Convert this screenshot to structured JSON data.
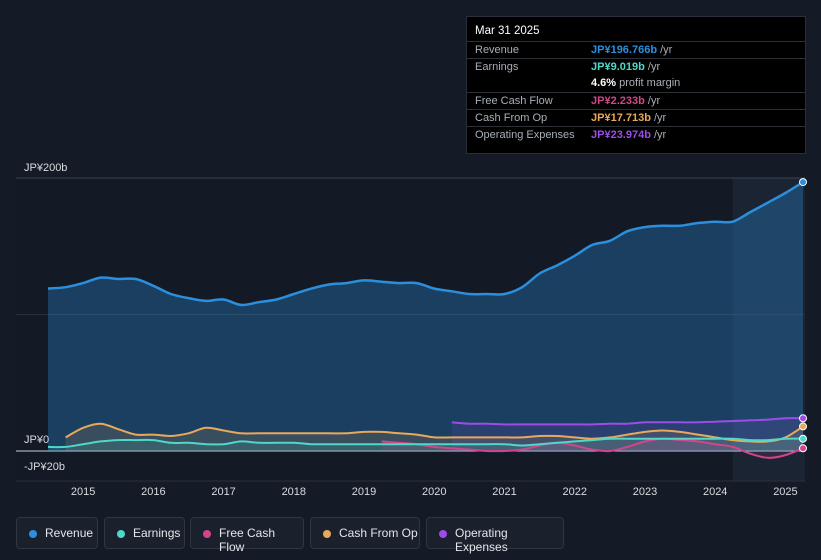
{
  "chart_data": {
    "type": "area",
    "y_axis_labels": {
      "top": "JP¥200b",
      "zero": "JP¥0",
      "bottom": "-JP¥20b"
    },
    "ylim": [
      -20,
      200
    ],
    "x_ticks": [
      2015,
      2016,
      2017,
      2018,
      2019,
      2020,
      2021,
      2022,
      2023,
      2024,
      2025
    ],
    "x_range": [
      2014.5,
      2025.25
    ],
    "highlight_start": 2024.25,
    "colors": {
      "revenue": "#2b8fdd",
      "earnings": "#4fd8c8",
      "fcf": "#d1468b",
      "cfo": "#e8a95a",
      "opex": "#9c4ce8"
    },
    "series": [
      {
        "name": "Revenue",
        "key": "revenue",
        "x": [
          2014.5,
          2014.75,
          2015.0,
          2015.25,
          2015.5,
          2015.75,
          2016.0,
          2016.25,
          2016.5,
          2016.75,
          2017.0,
          2017.25,
          2017.5,
          2017.75,
          2018.0,
          2018.25,
          2018.5,
          2018.75,
          2019.0,
          2019.25,
          2019.5,
          2019.75,
          2020.0,
          2020.25,
          2020.5,
          2020.75,
          2021.0,
          2021.25,
          2021.5,
          2021.75,
          2022.0,
          2022.25,
          2022.5,
          2022.75,
          2023.0,
          2023.25,
          2023.5,
          2023.75,
          2024.0,
          2024.25,
          2024.5,
          2024.75,
          2025.0,
          2025.25
        ],
        "values": [
          119,
          120,
          123,
          127,
          126,
          126,
          121,
          115,
          112,
          110,
          111,
          107,
          109,
          111,
          115,
          119,
          122,
          123,
          125,
          124,
          123,
          123,
          119,
          117,
          115,
          115,
          115,
          120,
          130,
          136,
          143,
          151,
          154,
          161,
          164,
          165,
          165,
          167,
          168,
          168,
          175,
          182,
          189,
          197
        ]
      },
      {
        "name": "Earnings",
        "key": "earnings",
        "x": [
          2014.5,
          2014.75,
          2015.0,
          2015.25,
          2015.5,
          2015.75,
          2016.0,
          2016.25,
          2016.5,
          2016.75,
          2017.0,
          2017.25,
          2017.5,
          2017.75,
          2018.0,
          2018.25,
          2018.5,
          2018.75,
          2019.0,
          2019.25,
          2019.5,
          2019.75,
          2020.0,
          2020.25,
          2020.5,
          2020.75,
          2021.0,
          2021.25,
          2021.5,
          2021.75,
          2022.0,
          2022.25,
          2022.5,
          2022.75,
          2023.0,
          2023.25,
          2023.5,
          2023.75,
          2024.0,
          2024.25,
          2024.5,
          2024.75,
          2025.0,
          2025.25
        ],
        "values": [
          3,
          3,
          5,
          7,
          8,
          8,
          8,
          6,
          6,
          5,
          5,
          7,
          6,
          6,
          6,
          5,
          5,
          5,
          5,
          5,
          5,
          5,
          5,
          5,
          5,
          5,
          5,
          4,
          5,
          6,
          7,
          8,
          9,
          9,
          9,
          9,
          9,
          9,
          9,
          9,
          8,
          8,
          9,
          9
        ]
      },
      {
        "name": "Free Cash Flow",
        "key": "fcf",
        "x": [
          2019.25,
          2019.5,
          2019.75,
          2020.0,
          2020.25,
          2020.5,
          2020.75,
          2021.0,
          2021.25,
          2021.5,
          2021.75,
          2022.0,
          2022.25,
          2022.5,
          2022.75,
          2023.0,
          2023.25,
          2023.5,
          2023.75,
          2024.0,
          2024.25,
          2024.5,
          2024.75,
          2025.0,
          2025.25
        ],
        "values": [
          7,
          6,
          5,
          3,
          2,
          1,
          0,
          0,
          1,
          4,
          6,
          4,
          1,
          0,
          3,
          7,
          9,
          8,
          7,
          5,
          3,
          -2,
          -5,
          -3,
          2
        ]
      },
      {
        "name": "Cash From Op",
        "key": "cfo",
        "x": [
          2014.75,
          2015.0,
          2015.25,
          2015.5,
          2015.75,
          2016.0,
          2016.25,
          2016.5,
          2016.75,
          2017.0,
          2017.25,
          2017.5,
          2017.75,
          2018.0,
          2018.25,
          2018.5,
          2018.75,
          2019.0,
          2019.25,
          2019.5,
          2019.75,
          2020.0,
          2020.25,
          2020.5,
          2020.75,
          2021.0,
          2021.25,
          2021.5,
          2021.75,
          2022.0,
          2022.25,
          2022.5,
          2022.75,
          2023.0,
          2023.25,
          2023.5,
          2023.75,
          2024.0,
          2024.25,
          2024.5,
          2024.75,
          2025.0,
          2025.25
        ],
        "values": [
          10,
          17,
          20,
          16,
          12,
          12,
          11,
          13,
          17,
          15,
          13,
          13,
          13,
          13,
          13,
          13,
          13,
          14,
          14,
          13,
          12,
          10,
          10,
          10,
          10,
          10,
          10,
          11,
          11,
          10,
          9,
          10,
          12,
          14,
          15,
          14,
          12,
          10,
          8,
          7,
          7,
          10,
          18
        ]
      },
      {
        "name": "Operating Expenses",
        "key": "opex",
        "x": [
          2020.25,
          2020.5,
          2020.75,
          2021.0,
          2021.25,
          2021.5,
          2021.75,
          2022.0,
          2022.25,
          2022.5,
          2022.75,
          2023.0,
          2023.25,
          2023.5,
          2023.75,
          2024.0,
          2024.25,
          2024.5,
          2024.75,
          2025.0,
          2025.25
        ],
        "values": [
          21,
          20,
          20,
          19.5,
          19.5,
          19.5,
          19.5,
          19.5,
          19.5,
          20,
          20,
          21,
          21,
          21,
          21,
          21.5,
          22,
          22.5,
          23,
          24,
          24
        ]
      }
    ]
  },
  "tooltip": {
    "date": "Mar 31 2025",
    "rows": [
      {
        "label": "Revenue",
        "value": "JP¥196.766b",
        "unit": "/yr",
        "color": "#2b8fdd"
      },
      {
        "label": "Earnings",
        "value": "JP¥9.019b",
        "unit": "/yr",
        "color": "#4fd8c8"
      },
      {
        "label": "",
        "value": "4.6%",
        "unit": "profit margin",
        "color": "#ffffff"
      },
      {
        "label": "Free Cash Flow",
        "value": "JP¥2.233b",
        "unit": "/yr",
        "color": "#d1468b"
      },
      {
        "label": "Cash From Op",
        "value": "JP¥17.713b",
        "unit": "/yr",
        "color": "#e8a95a"
      },
      {
        "label": "Operating Expenses",
        "value": "JP¥23.974b",
        "unit": "/yr",
        "color": "#9c4ce8"
      }
    ]
  },
  "legend": [
    {
      "label": "Revenue",
      "color": "#2b8fdd"
    },
    {
      "label": "Earnings",
      "color": "#4fd8c8"
    },
    {
      "label": "Free Cash Flow",
      "color": "#d1468b"
    },
    {
      "label": "Cash From Op",
      "color": "#e8a95a"
    },
    {
      "label": "Operating Expenses",
      "color": "#9c4ce8"
    }
  ]
}
